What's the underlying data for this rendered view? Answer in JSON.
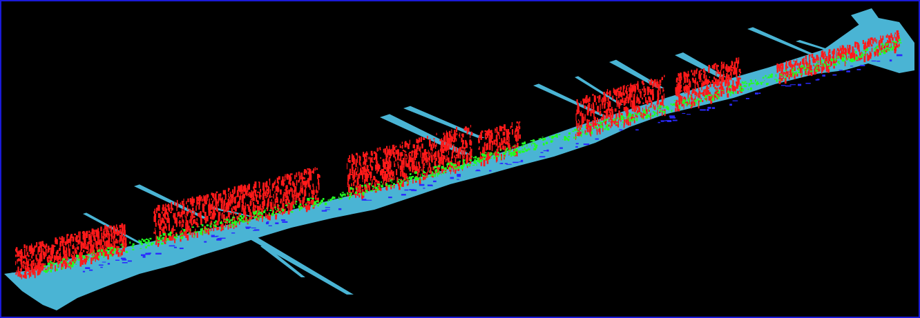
{
  "viewport": {
    "background": "#000000",
    "border_color": "#1a1ad8"
  },
  "point_cloud": {
    "classes": [
      {
        "name": "ground",
        "color": "#4ab4d4"
      },
      {
        "name": "building",
        "color": "#ff1a1a"
      },
      {
        "name": "vegetation",
        "color": "#22ff22"
      },
      {
        "name": "vehicle",
        "color": "#2a2aff"
      }
    ]
  }
}
